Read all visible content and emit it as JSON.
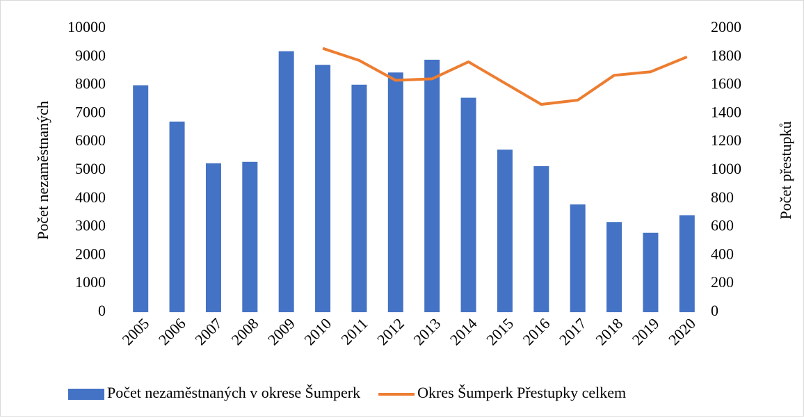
{
  "chart_data": {
    "type": "bar",
    "categories": [
      "2005",
      "2006",
      "2007",
      "2008",
      "2009",
      "2010",
      "2011",
      "2012",
      "2013",
      "2014",
      "2015",
      "2016",
      "2017",
      "2018",
      "2019",
      "2020"
    ],
    "series": [
      {
        "name": "Počet nezaměstnaných v okrese Šumperk",
        "type": "bar",
        "color": "#4472c4",
        "values": [
          8000,
          6720,
          5250,
          5300,
          9200,
          8720,
          8020,
          8450,
          8900,
          7560,
          5730,
          5150,
          3800,
          3180,
          2800,
          3420
        ]
      },
      {
        "name": "Okres Šumperk Přestupky celkem",
        "type": "line",
        "axis": "y2",
        "color": "#ed7d31",
        "values": [
          null,
          null,
          null,
          null,
          null,
          1860,
          1775,
          1635,
          1645,
          1765,
          1615,
          1465,
          1495,
          1670,
          1695,
          1800
        ]
      }
    ],
    "y_label": "Počet nezaměstnaných",
    "y2_label": "Počet přestupků",
    "ylim": [
      0,
      10000
    ],
    "yticks": [
      0,
      1000,
      2000,
      3000,
      4000,
      5000,
      6000,
      7000,
      8000,
      9000,
      10000
    ],
    "y2lim": [
      0,
      2000
    ],
    "y2ticks": [
      0,
      200,
      400,
      600,
      800,
      1000,
      1200,
      1400,
      1600,
      1800,
      2000
    ],
    "legend": "bottom"
  }
}
